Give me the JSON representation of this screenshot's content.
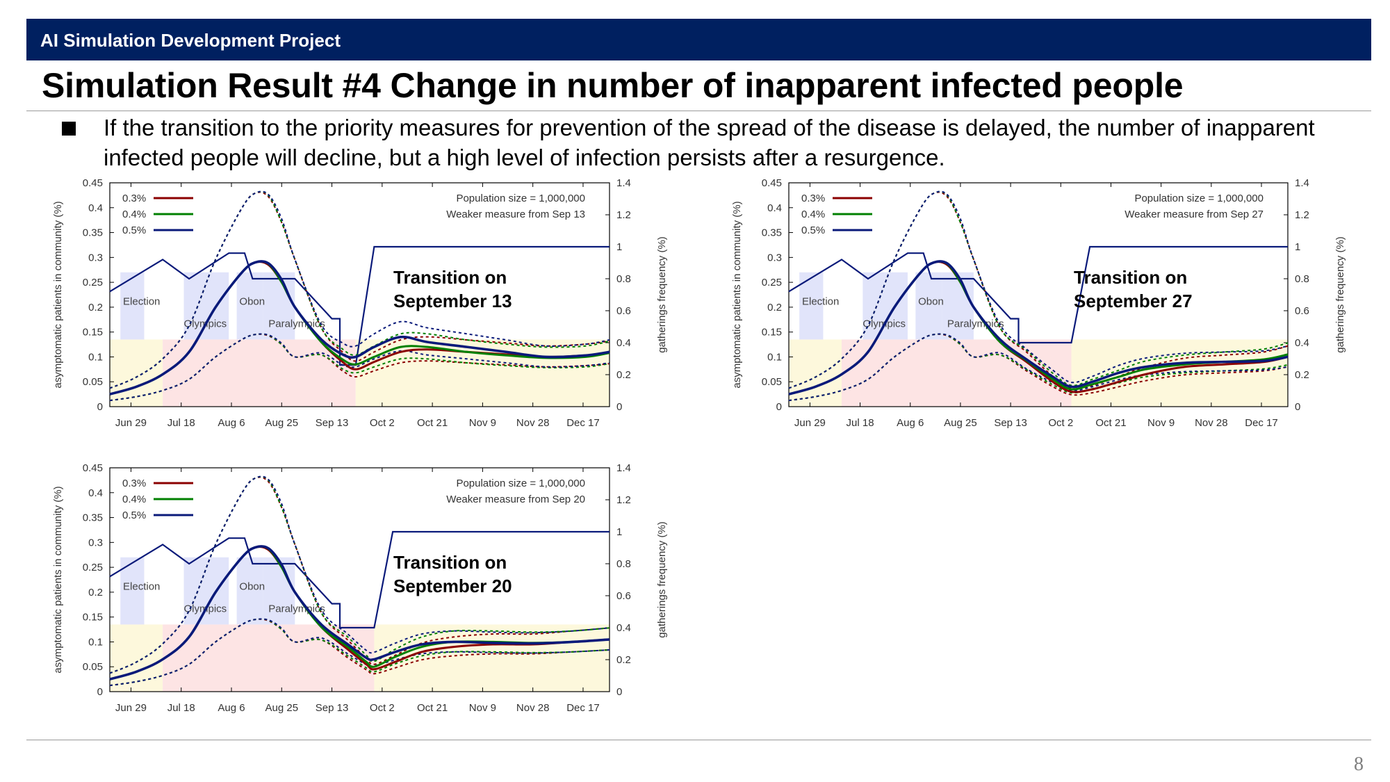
{
  "header": {
    "project": "AI Simulation Development Project"
  },
  "slide": {
    "title": "Simulation Result #4 Change in number of inapparent infected people",
    "bullet": "If the transition to the priority measures for prevention of the spread of the disease is delayed, the number of inapparent infected people will decline, but a high level of infection persists after a resurgence.",
    "page_number": "8"
  },
  "colors": {
    "header_bg": "#002060",
    "s03": "#8b0000",
    "s04": "#008000",
    "s05": "#0a1a7a",
    "gathering": "#0a1a7a"
  },
  "chart_data": [
    {
      "type": "line",
      "annotation": [
        "Transition on",
        "September 13"
      ],
      "info": [
        "Population size = 1,000,000",
        "Weaker measure from Sep 13"
      ],
      "ylabel": "asymptomatic patients in community (%)",
      "ylabel2": "gatherings frequency (%)",
      "xticks": [
        "Jun 29",
        "Jul 18",
        "Aug 6",
        "Aug 25",
        "Sep 13",
        "Oct 2",
        "Oct 21",
        "Nov 9",
        "Nov 28",
        "Dec 17"
      ],
      "yticks": [
        "0",
        "0.05",
        "0.1",
        "0.15",
        "0.2",
        "0.25",
        "0.3",
        "0.35",
        "0.4",
        "0.45"
      ],
      "y2ticks": [
        "0",
        "0.2",
        "0.4",
        "0.6",
        "0.8",
        "1",
        "1.2",
        "1.4"
      ],
      "ylim": [
        0,
        0.45
      ],
      "y2lim": [
        0,
        1.4
      ],
      "xlim": [
        0,
        189
      ],
      "events": [
        "Election",
        "Olympics",
        "Obon",
        "Paralympics"
      ],
      "transition_day": 93,
      "gathering": [
        [
          0,
          0.72
        ],
        [
          20,
          0.92
        ],
        [
          30,
          0.8
        ],
        [
          45,
          0.96
        ],
        [
          51,
          0.96
        ],
        [
          54,
          0.8
        ],
        [
          70,
          0.8
        ],
        [
          70,
          0.8
        ],
        [
          84,
          0.55
        ],
        [
          87,
          0.55
        ],
        [
          87,
          0.26
        ],
        [
          93,
          0.26
        ],
        [
          100,
          1.0
        ],
        [
          189,
          1.0
        ]
      ],
      "series": [
        {
          "name": "0.3%",
          "values": [
            [
              0,
              0.025
            ],
            [
              10,
              0.04
            ],
            [
              20,
              0.065
            ],
            [
              30,
              0.11
            ],
            [
              40,
              0.2
            ],
            [
              50,
              0.27
            ],
            [
              55,
              0.29
            ],
            [
              60,
              0.285
            ],
            [
              65,
              0.25
            ],
            [
              70,
              0.2
            ],
            [
              80,
              0.13
            ],
            [
              88,
              0.09
            ],
            [
              93,
              0.075
            ],
            [
              100,
              0.09
            ],
            [
              110,
              0.11
            ],
            [
              120,
              0.115
            ],
            [
              135,
              0.11
            ],
            [
              150,
              0.105
            ],
            [
              165,
              0.1
            ],
            [
              180,
              0.103
            ],
            [
              189,
              0.108
            ]
          ]
        },
        {
          "name": "0.4%",
          "values": [
            [
              0,
              0.025
            ],
            [
              10,
              0.04
            ],
            [
              20,
              0.065
            ],
            [
              30,
              0.11
            ],
            [
              40,
              0.2
            ],
            [
              50,
              0.27
            ],
            [
              55,
              0.29
            ],
            [
              60,
              0.287
            ],
            [
              65,
              0.25
            ],
            [
              70,
              0.2
            ],
            [
              80,
              0.13
            ],
            [
              88,
              0.095
            ],
            [
              93,
              0.085
            ],
            [
              100,
              0.1
            ],
            [
              110,
              0.12
            ],
            [
              120,
              0.12
            ],
            [
              135,
              0.11
            ],
            [
              150,
              0.103
            ],
            [
              165,
              0.098
            ],
            [
              180,
              0.1
            ],
            [
              189,
              0.108
            ]
          ]
        },
        {
          "name": "0.5%",
          "values": [
            [
              0,
              0.025
            ],
            [
              10,
              0.04
            ],
            [
              20,
              0.065
            ],
            [
              30,
              0.11
            ],
            [
              40,
              0.2
            ],
            [
              50,
              0.27
            ],
            [
              55,
              0.29
            ],
            [
              60,
              0.288
            ],
            [
              65,
              0.255
            ],
            [
              70,
              0.2
            ],
            [
              80,
              0.135
            ],
            [
              88,
              0.105
            ],
            [
              93,
              0.1
            ],
            [
              100,
              0.12
            ],
            [
              110,
              0.14
            ],
            [
              120,
              0.13
            ],
            [
              135,
              0.12
            ],
            [
              150,
              0.11
            ],
            [
              165,
              0.1
            ],
            [
              180,
              0.103
            ],
            [
              189,
              0.11
            ]
          ]
        }
      ]
    },
    {
      "type": "line",
      "annotation": [
        "Transition on",
        "September 27"
      ],
      "info": [
        "Population size = 1,000,000",
        "Weaker measure from Sep 27"
      ],
      "ylabel": "asymptomatic patients in community (%)",
      "ylabel2": "gatherings frequency (%)",
      "xticks": [
        "Jun 29",
        "Jul 18",
        "Aug 6",
        "Aug 25",
        "Sep 13",
        "Oct 2",
        "Oct 21",
        "Nov 9",
        "Nov 28",
        "Dec 17"
      ],
      "yticks": [
        "0",
        "0.05",
        "0.1",
        "0.15",
        "0.2",
        "0.25",
        "0.3",
        "0.35",
        "0.4",
        "0.45"
      ],
      "y2ticks": [
        "0",
        "0.2",
        "0.4",
        "0.6",
        "0.8",
        "1",
        "1.2",
        "1.4"
      ],
      "ylim": [
        0,
        0.45
      ],
      "y2lim": [
        0,
        1.4
      ],
      "xlim": [
        0,
        189
      ],
      "events": [
        "Election",
        "Olympics",
        "Obon",
        "Paralympics"
      ],
      "transition_day": 107,
      "gathering": [
        [
          0,
          0.72
        ],
        [
          20,
          0.92
        ],
        [
          30,
          0.8
        ],
        [
          45,
          0.96
        ],
        [
          51,
          0.96
        ],
        [
          54,
          0.8
        ],
        [
          70,
          0.8
        ],
        [
          70,
          0.8
        ],
        [
          84,
          0.55
        ],
        [
          87,
          0.55
        ],
        [
          87,
          0.4
        ],
        [
          107,
          0.4
        ],
        [
          114,
          1.0
        ],
        [
          189,
          1.0
        ]
      ],
      "series": [
        {
          "name": "0.3%",
          "values": [
            [
              0,
              0.025
            ],
            [
              10,
              0.04
            ],
            [
              20,
              0.065
            ],
            [
              30,
              0.11
            ],
            [
              40,
              0.2
            ],
            [
              50,
              0.27
            ],
            [
              55,
              0.29
            ],
            [
              60,
              0.285
            ],
            [
              65,
              0.25
            ],
            [
              70,
              0.2
            ],
            [
              80,
              0.13
            ],
            [
              90,
              0.09
            ],
            [
              100,
              0.05
            ],
            [
              107,
              0.03
            ],
            [
              115,
              0.035
            ],
            [
              125,
              0.05
            ],
            [
              135,
              0.065
            ],
            [
              150,
              0.08
            ],
            [
              165,
              0.085
            ],
            [
              180,
              0.09
            ],
            [
              189,
              0.1
            ]
          ]
        },
        {
          "name": "0.4%",
          "values": [
            [
              0,
              0.025
            ],
            [
              10,
              0.04
            ],
            [
              20,
              0.065
            ],
            [
              30,
              0.11
            ],
            [
              40,
              0.2
            ],
            [
              50,
              0.27
            ],
            [
              55,
              0.29
            ],
            [
              60,
              0.287
            ],
            [
              65,
              0.25
            ],
            [
              70,
              0.2
            ],
            [
              80,
              0.13
            ],
            [
              90,
              0.093
            ],
            [
              100,
              0.055
            ],
            [
              107,
              0.035
            ],
            [
              115,
              0.045
            ],
            [
              125,
              0.06
            ],
            [
              135,
              0.075
            ],
            [
              150,
              0.085
            ],
            [
              165,
              0.09
            ],
            [
              180,
              0.095
            ],
            [
              189,
              0.105
            ]
          ]
        },
        {
          "name": "0.5%",
          "values": [
            [
              0,
              0.025
            ],
            [
              10,
              0.04
            ],
            [
              20,
              0.065
            ],
            [
              30,
              0.11
            ],
            [
              40,
              0.2
            ],
            [
              50,
              0.27
            ],
            [
              55,
              0.29
            ],
            [
              60,
              0.288
            ],
            [
              65,
              0.255
            ],
            [
              70,
              0.2
            ],
            [
              80,
              0.135
            ],
            [
              90,
              0.095
            ],
            [
              100,
              0.06
            ],
            [
              107,
              0.04
            ],
            [
              115,
              0.05
            ],
            [
              125,
              0.068
            ],
            [
              135,
              0.08
            ],
            [
              150,
              0.088
            ],
            [
              165,
              0.09
            ],
            [
              180,
              0.092
            ],
            [
              189,
              0.1
            ]
          ]
        }
      ]
    },
    {
      "type": "line",
      "annotation": [
        "Transition on",
        "September 20"
      ],
      "info": [
        "Population size = 1,000,000",
        "Weaker measure from Sep 20"
      ],
      "ylabel": "asymptomatic patients in community (%)",
      "ylabel2": "gatherings frequency (%)",
      "xticks": [
        "Jun 29",
        "Jul 18",
        "Aug 6",
        "Aug 25",
        "Sep 13",
        "Oct 2",
        "Oct 21",
        "Nov 9",
        "Nov 28",
        "Dec 17"
      ],
      "yticks": [
        "0",
        "0.05",
        "0.1",
        "0.15",
        "0.2",
        "0.25",
        "0.3",
        "0.35",
        "0.4",
        "0.45"
      ],
      "y2ticks": [
        "0",
        "0.2",
        "0.4",
        "0.6",
        "0.8",
        "1",
        "1.2",
        "1.4"
      ],
      "ylim": [
        0,
        0.45
      ],
      "y2lim": [
        0,
        1.4
      ],
      "xlim": [
        0,
        189
      ],
      "events": [
        "Election",
        "Olympics",
        "Obon",
        "Paralympics"
      ],
      "transition_day": 100,
      "gathering": [
        [
          0,
          0.72
        ],
        [
          20,
          0.92
        ],
        [
          30,
          0.8
        ],
        [
          45,
          0.96
        ],
        [
          51,
          0.96
        ],
        [
          54,
          0.8
        ],
        [
          70,
          0.8
        ],
        [
          70,
          0.8
        ],
        [
          84,
          0.55
        ],
        [
          87,
          0.55
        ],
        [
          87,
          0.4
        ],
        [
          100,
          0.4
        ],
        [
          107,
          1.0
        ],
        [
          189,
          1.0
        ]
      ],
      "series": [
        {
          "name": "0.3%",
          "values": [
            [
              0,
              0.025
            ],
            [
              10,
              0.04
            ],
            [
              20,
              0.065
            ],
            [
              30,
              0.11
            ],
            [
              40,
              0.2
            ],
            [
              50,
              0.27
            ],
            [
              55,
              0.29
            ],
            [
              60,
              0.285
            ],
            [
              65,
              0.25
            ],
            [
              70,
              0.2
            ],
            [
              80,
              0.13
            ],
            [
              90,
              0.085
            ],
            [
              97,
              0.055
            ],
            [
              100,
              0.045
            ],
            [
              108,
              0.06
            ],
            [
              118,
              0.08
            ],
            [
              130,
              0.09
            ],
            [
              145,
              0.095
            ],
            [
              160,
              0.095
            ],
            [
              175,
              0.1
            ],
            [
              189,
              0.105
            ]
          ]
        },
        {
          "name": "0.4%",
          "values": [
            [
              0,
              0.025
            ],
            [
              10,
              0.04
            ],
            [
              20,
              0.065
            ],
            [
              30,
              0.11
            ],
            [
              40,
              0.2
            ],
            [
              50,
              0.27
            ],
            [
              55,
              0.29
            ],
            [
              60,
              0.287
            ],
            [
              65,
              0.25
            ],
            [
              70,
              0.2
            ],
            [
              80,
              0.13
            ],
            [
              90,
              0.09
            ],
            [
              97,
              0.06
            ],
            [
              100,
              0.05
            ],
            [
              108,
              0.07
            ],
            [
              118,
              0.09
            ],
            [
              130,
              0.1
            ],
            [
              145,
              0.1
            ],
            [
              160,
              0.098
            ],
            [
              175,
              0.1
            ],
            [
              189,
              0.105
            ]
          ]
        },
        {
          "name": "0.5%",
          "values": [
            [
              0,
              0.025
            ],
            [
              10,
              0.04
            ],
            [
              20,
              0.065
            ],
            [
              30,
              0.11
            ],
            [
              40,
              0.2
            ],
            [
              50,
              0.27
            ],
            [
              55,
              0.29
            ],
            [
              60,
              0.288
            ],
            [
              65,
              0.255
            ],
            [
              70,
              0.2
            ],
            [
              80,
              0.135
            ],
            [
              90,
              0.095
            ],
            [
              97,
              0.068
            ],
            [
              100,
              0.065
            ],
            [
              108,
              0.08
            ],
            [
              118,
              0.095
            ],
            [
              130,
              0.1
            ],
            [
              145,
              0.098
            ],
            [
              160,
              0.097
            ],
            [
              175,
              0.1
            ],
            [
              189,
              0.105
            ]
          ]
        }
      ]
    }
  ]
}
